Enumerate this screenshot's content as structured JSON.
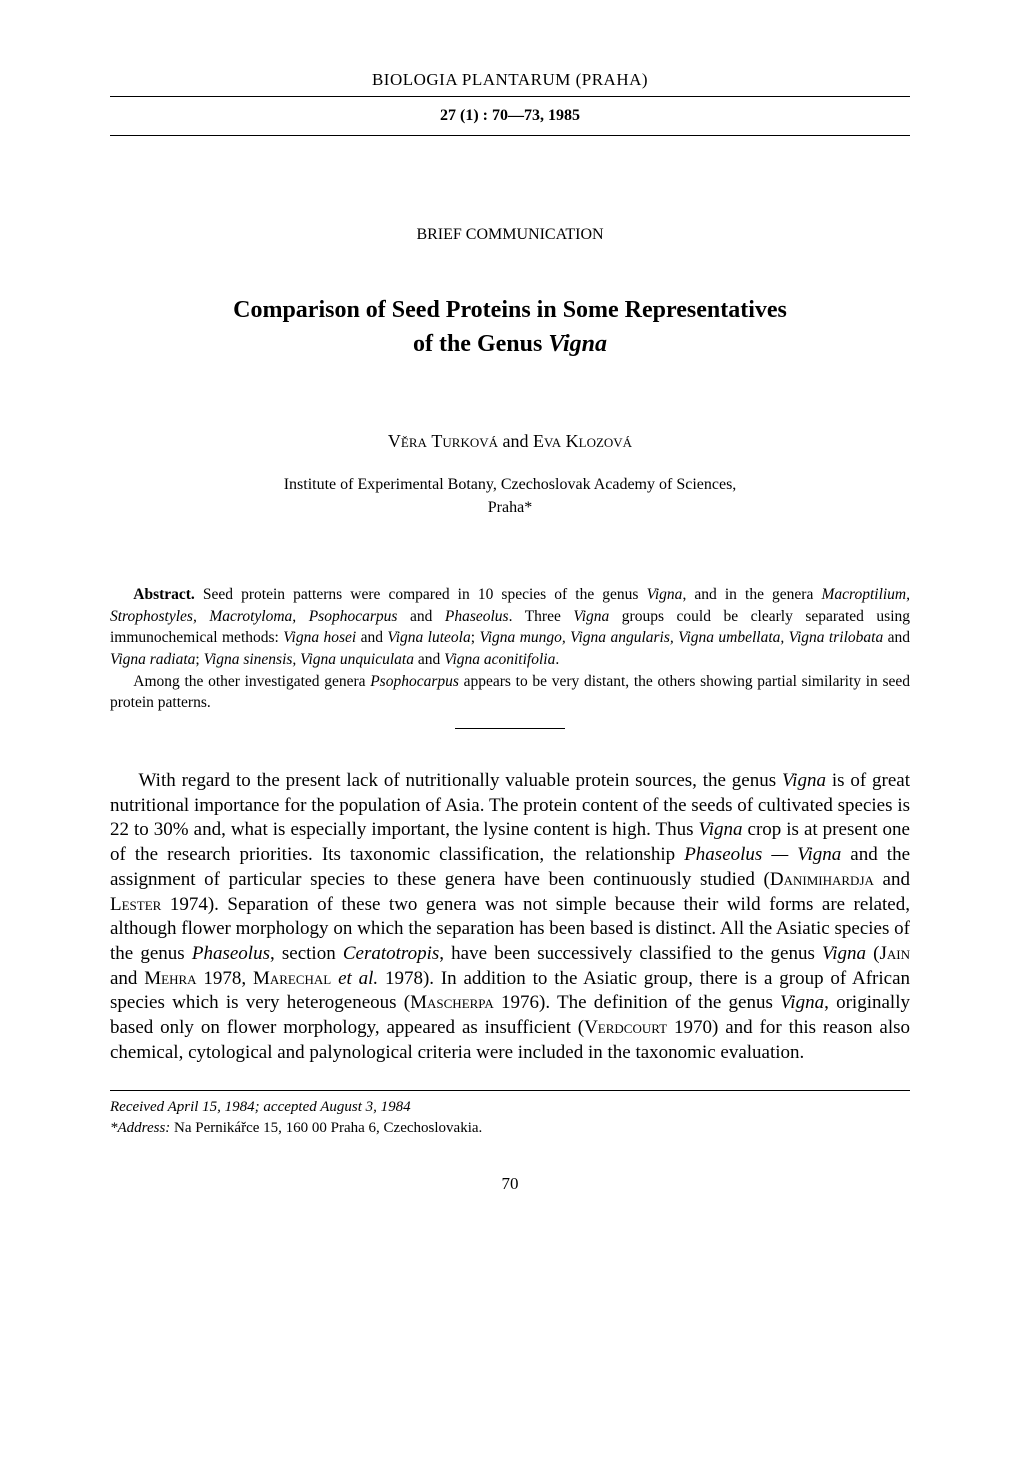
{
  "header": {
    "journal": "BIOLOGIA PLANTARUM (PRAHA)",
    "volume_info": "27 (1) : 70—73, 1985"
  },
  "section_label": "BRIEF COMMUNICATION",
  "title": {
    "line1": "Comparison of Seed Proteins in Some Representatives",
    "line2_prefix": "of the Genus ",
    "line2_italic": "Vigna"
  },
  "authors": {
    "a1_first": "Věra",
    "a1_last": "Turková",
    "connector": " and ",
    "a2_first": "Eva",
    "a2_last": "Klozová"
  },
  "affiliation": {
    "line1": "Institute of Experimental Botany, Czechoslovak Academy of Sciences,",
    "line2": "Praha*"
  },
  "abstract": {
    "label": "Abstract.",
    "p1a": " Seed protein patterns were compared in 10 species of the genus ",
    "p1b": "Vigna",
    "p1c": ", and in the genera ",
    "p1d": "Macroptilium, Strophostyles, Macrotyloma, Psophocarpus",
    "p1e": " and ",
    "p1f": "Phaseolus",
    "p1g": ". Three ",
    "p1h": "Vigna",
    "p1i": " groups could be clearly separated using immunochemical methods: ",
    "p1j": "Vigna hosei",
    "p1k": " and ",
    "p1l": "Vigna luteola",
    "p1m": "; ",
    "p1n": "Vigna mungo, Vigna angularis, Vigna umbellata, Vigna trilobata",
    "p1o": " and ",
    "p1p": "Vigna radiata",
    "p1q": "; ",
    "p1r": "Vigna sinensis, Vigna unquiculata",
    "p1s": " and ",
    "p1t": "Vigna aconitifolia",
    "p1u": ".",
    "p2a": "Among the other investigated genera ",
    "p2b": "Psophocarpus",
    "p2c": " appears to be very distant, the others showing partial similarity in seed protein patterns."
  },
  "body": {
    "p1a": "With regard to the present lack of nutritionally valuable protein sources, the genus ",
    "p1b": "Vigna",
    "p1c": " is of great nutritional importance for the population of Asia. The protein content of the seeds of cultivated species is 22 to 30% and, what is especially important, the lysine content is high. Thus ",
    "p1d": "Vigna",
    "p1e": " crop is at present one of the research priorities. Its taxonomic classification, the relationship ",
    "p1f": "Phaseolus — Vigna",
    "p1g": " and the assignment of particular species to these genera have been continuously studied (",
    "p1h": "Danimihardja",
    "p1i": " and ",
    "p1j": "Lester",
    "p1k": " 1974). Separation of these two genera was not simple because their wild forms are related, although flower morphology on which the separation has been based is distinct. All the Asiatic species of the genus ",
    "p1l": "Phaseolus",
    "p1m": ", section ",
    "p1n": "Ceratotropis",
    "p1o": ", have been successively classified to the genus ",
    "p1p": "Vigna",
    "p1q": " (",
    "p1r": "Jain",
    "p1s": " and ",
    "p1t": "Mehra",
    "p1u": " 1978, ",
    "p1v": "Marechal",
    "p1w": " ",
    "p1x": "et al.",
    "p1y": " 1978). In addition to the Asiatic group, there is a group of African species which is very heterogeneous (",
    "p1z": "Mascherpa",
    "p1aa": " 1976). The definition of the genus ",
    "p1ab": "Vigna",
    "p1ac": ", originally based only on flower morphology, appeared as insufficient (",
    "p1ad": "Verdcourt",
    "p1ae": " 1970) and for this reason also chemical, cytological and palynological criteria were included in the taxonomic evaluation."
  },
  "footnotes": {
    "f1a": "Received April 15, 1984; accepted August 3, 1984",
    "f2a": "*Address:",
    "f2b": " Na Pernikářce 15, 160 00 Praha 6, Czechoslovakia."
  },
  "page_number": "70"
}
